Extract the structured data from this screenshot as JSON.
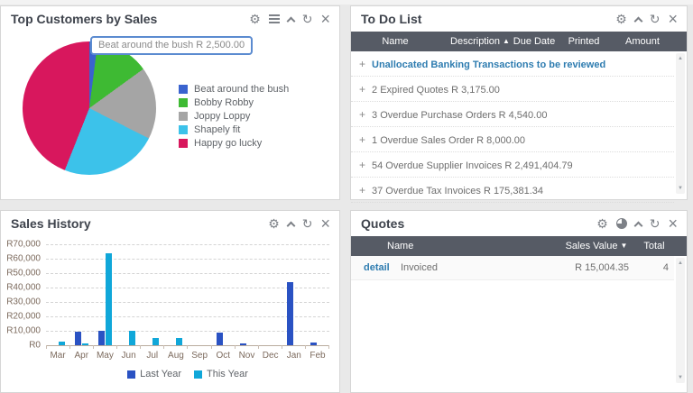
{
  "panels": {
    "top_customers": {
      "title": "Top Customers by Sales",
      "icons": [
        "gear",
        "menu",
        "collapse",
        "refresh",
        "close"
      ],
      "tooltip": "Beat around the bush R 2,500.00",
      "chart_data": {
        "type": "pie",
        "labels": [
          "Beat around the bush",
          "Bobby Robby",
          "Joppy Loppy",
          "Shapely fit",
          "Happy go lucky"
        ],
        "values_pct": [
          2,
          13,
          17.5,
          23.5,
          44
        ],
        "colors": [
          "#3a63cf",
          "#3eba33",
          "#a5a5a5",
          "#3cc2ea",
          "#d8175d"
        ],
        "highlighted_label": "Beat around the bush",
        "highlighted_value": "R 2,500.00",
        "legend_position": "right",
        "start_angle_deg": 0
      }
    },
    "todo_list": {
      "title": "To Do List",
      "icons": [
        "gear",
        "collapse",
        "refresh",
        "close"
      ],
      "columns": [
        {
          "label": "Name",
          "sort": null
        },
        {
          "label": "Description",
          "sort": "asc"
        },
        {
          "label": "Due Date",
          "sort": null
        },
        {
          "label": "Printed",
          "sort": null
        },
        {
          "label": "Amount",
          "sort": null
        }
      ],
      "rows": [
        {
          "expander": "+",
          "text": "Unallocated Banking Transactions to be reviewed",
          "emphasis": true
        },
        {
          "expander": "+",
          "text": "2 Expired Quotes R 3,175.00",
          "emphasis": false
        },
        {
          "expander": "+",
          "text": "3 Overdue Purchase Orders R 4,540.00",
          "emphasis": false
        },
        {
          "expander": "+",
          "text": "1 Overdue Sales Order R 8,000.00",
          "emphasis": false
        },
        {
          "expander": "+",
          "text": "54 Overdue Supplier Invoices R 2,491,404.79",
          "emphasis": false
        },
        {
          "expander": "+",
          "text": "37 Overdue Tax Invoices R 175,381.34",
          "emphasis": false
        }
      ]
    },
    "sales_history": {
      "title": "Sales History",
      "icons": [
        "gear",
        "collapse",
        "refresh",
        "close"
      ],
      "chart_data": {
        "type": "bar",
        "categories": [
          "Mar",
          "Apr",
          "May",
          "Jun",
          "Jul",
          "Aug",
          "Sep",
          "Oct",
          "Nov",
          "Dec",
          "Jan",
          "Feb"
        ],
        "series": [
          {
            "name": "Last Year",
            "color": "#2a52c3",
            "values": [
              0,
              9200,
              10300,
              0,
              0,
              0,
              0,
              8700,
              1200,
              0,
              44000,
              1700
            ]
          },
          {
            "name": "This Year",
            "color": "#10a7d9",
            "values": [
              2500,
              1300,
              63500,
              9800,
              5100,
              5200,
              0,
              0,
              0,
              0,
              0,
              0
            ]
          }
        ],
        "y_ticks": [
          "R70,000",
          "R60,000",
          "R50,000",
          "R40,000",
          "R30,000",
          "R20,000",
          "R10,000",
          "R0"
        ],
        "ymax": 70000,
        "ylim": [
          0,
          70000
        ],
        "grid": "dashed-horizontal",
        "legend_position": "bottom"
      }
    },
    "quotes": {
      "title": "Quotes",
      "icons": [
        "gear",
        "chart",
        "collapse",
        "refresh",
        "close"
      ],
      "columns": [
        {
          "label": "Name",
          "sort": null
        },
        {
          "label": "Sales Value",
          "sort": "desc"
        },
        {
          "label": "Total",
          "sort": null
        }
      ],
      "rows": [
        {
          "link": "detail",
          "name": "Invoiced",
          "sales_value": "R 15,004.35",
          "total": "4"
        }
      ]
    }
  },
  "colors": {
    "link_blue": "#2e7cb0",
    "table_header_bg": "#565b65",
    "panel_bg": "#ffffff",
    "page_bg": "#e9e9e9"
  }
}
